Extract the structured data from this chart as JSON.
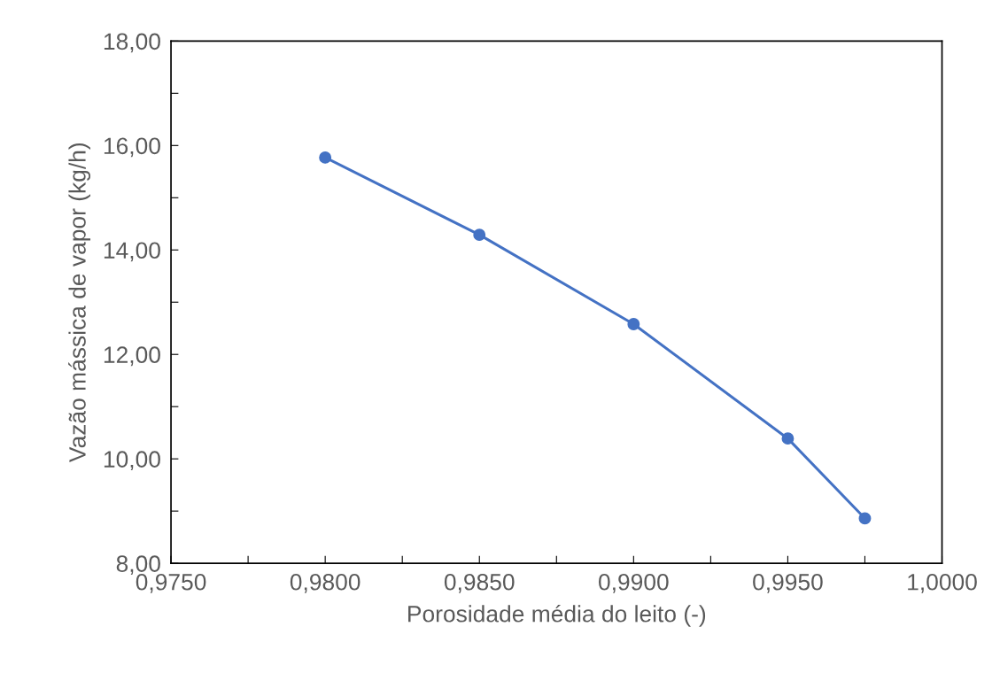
{
  "chart_data": {
    "type": "line",
    "xlabel": "Porosidade média do leito (-)",
    "ylabel": "Vazão mássica de vapor (kg/h)",
    "x": [
      0.98,
      0.985,
      0.99,
      0.995,
      0.9975
    ],
    "series": [
      {
        "color": "#4472c4",
        "values": [
          15.77,
          14.29,
          12.58,
          10.39,
          8.86
        ]
      }
    ],
    "xlim": [
      0.975,
      1.0
    ],
    "xticks": [
      {
        "value": 0.975,
        "label": "0,9750"
      },
      {
        "value": 0.9775,
        "label": null
      },
      {
        "value": 0.98,
        "label": "0,9800"
      },
      {
        "value": 0.9825,
        "label": null
      },
      {
        "value": 0.985,
        "label": "0,9850"
      },
      {
        "value": 0.9875,
        "label": null
      },
      {
        "value": 0.99,
        "label": "0,9900"
      },
      {
        "value": 0.9925,
        "label": null
      },
      {
        "value": 0.995,
        "label": "0,9950"
      },
      {
        "value": 0.9975,
        "label": null
      },
      {
        "value": 1.0,
        "label": "1,0000"
      }
    ],
    "ylim": [
      8,
      18
    ],
    "yticks": [
      {
        "value": 8,
        "label": "8,00"
      },
      {
        "value": 9,
        "label": null
      },
      {
        "value": 10,
        "label": "10,00"
      },
      {
        "value": 11,
        "label": null
      },
      {
        "value": 12,
        "label": "12,00"
      },
      {
        "value": 13,
        "label": null
      },
      {
        "value": 14,
        "label": "14,00"
      },
      {
        "value": 15,
        "label": null
      },
      {
        "value": 16,
        "label": "16,00"
      },
      {
        "value": 17,
        "label": null
      },
      {
        "value": 18,
        "label": "18,00"
      }
    ],
    "grid": false,
    "marker": "circle",
    "line_style": "solid"
  }
}
